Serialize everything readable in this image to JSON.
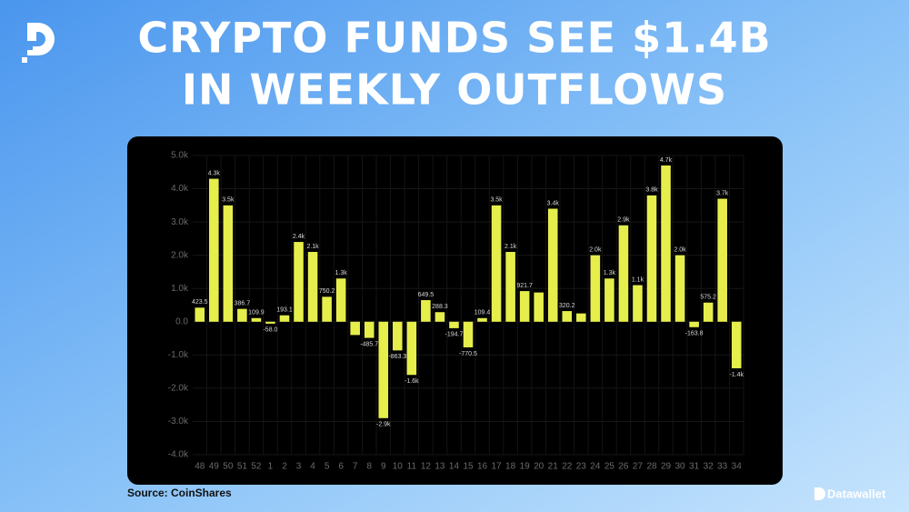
{
  "chart_data": {
    "type": "bar",
    "title": [
      "CRYPTO FUNDS SEE $1.4B",
      "IN WEEKLY OUTFLOWS"
    ],
    "categories": [
      "48",
      "49",
      "50",
      "51",
      "52",
      "1",
      "2",
      "3",
      "4",
      "5",
      "6",
      "7",
      "8",
      "9",
      "10",
      "11",
      "12",
      "13",
      "14",
      "15",
      "16",
      "17",
      "18",
      "19",
      "20",
      "21",
      "22",
      "23",
      "24",
      "25",
      "26",
      "27",
      "28",
      "29",
      "30",
      "31",
      "32",
      "33",
      "34"
    ],
    "values": [
      423.5,
      4300,
      3500,
      386.7,
      109.9,
      -58.0,
      193.1,
      2400,
      2100,
      750.2,
      1300,
      -400,
      -485.7,
      -2900,
      -863.3,
      -1600,
      649.5,
      288.3,
      -194.7,
      -770.5,
      109.4,
      3500,
      2100,
      921.7,
      880,
      3400,
      320.2,
      250,
      2000,
      1300,
      2900,
      1100,
      3800,
      4700,
      2000,
      -163.8,
      575.2,
      3700,
      -1400
    ],
    "value_labels": [
      "423.5",
      "4.3k",
      "3.5k",
      "386.7",
      "109.9",
      "-58.0",
      "193.1",
      "2.4k",
      "2.1k",
      "750.2",
      "1.3k",
      null,
      "-485.7",
      "-2.9k",
      "-863.3",
      "-1.6k",
      "649.5",
      "288.3",
      "-194.7",
      "-770.5",
      "109.4",
      "3.5k",
      "2.1k",
      "921.7",
      null,
      "3.4k",
      "320.2",
      null,
      "2.0k",
      "1.3k",
      "2.9k",
      "1.1k",
      "3.8k",
      "4.7k",
      "2.0k",
      "-163.8",
      "575.2",
      "3.7k",
      "-1.4k"
    ],
    "color": "#e6ee4c",
    "ylim": [
      -4000,
      5000
    ],
    "yticks": [
      {
        "value": -4000,
        "label": "-4.0k"
      },
      {
        "value": -3000,
        "label": "-3.0k"
      },
      {
        "value": -2000,
        "label": "-2.0k"
      },
      {
        "value": -1000,
        "label": "-1.0k"
      },
      {
        "value": 0,
        "label": "0.0"
      },
      {
        "value": 1000,
        "label": "1.0k"
      },
      {
        "value": 2000,
        "label": "2.0k"
      },
      {
        "value": 3000,
        "label": "3.0k"
      },
      {
        "value": 4000,
        "label": "4.0k"
      },
      {
        "value": 5000,
        "label": "5.0k"
      }
    ],
    "grid": true,
    "source": "Source: CoinShares",
    "brand": "Datawallet"
  }
}
